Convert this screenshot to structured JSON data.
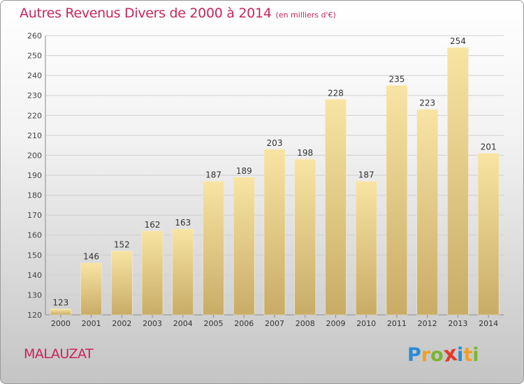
{
  "header": {
    "title": "Autres Revenus Divers de 2000 à 2014",
    "subtitle": "(en milliers d'€)"
  },
  "footer": {
    "commune": "MALAUZAT",
    "logo_letters": [
      "P",
      "r",
      "o",
      "x",
      "i",
      "t",
      "i"
    ],
    "logo_colors": [
      "#2c8bd4",
      "#f0a020",
      "#7ab630",
      "#e03c2a",
      "#2c8bd4",
      "#f0a020",
      "#7ab630"
    ]
  },
  "colors": {
    "title": "#c8255a",
    "bar_light": "#f7e2a0",
    "bar_dark": "#c9ae68",
    "grid": "#cfcfcf"
  },
  "chart_data": {
    "type": "bar",
    "title": "Autres Revenus Divers de 2000 à 2014",
    "subtitle": "(en milliers d'€)",
    "categories": [
      "2000",
      "2001",
      "2002",
      "2003",
      "2004",
      "2005",
      "2006",
      "2007",
      "2008",
      "2009",
      "2010",
      "2011",
      "2012",
      "2013",
      "2014"
    ],
    "values": [
      123,
      146,
      152,
      162,
      163,
      187,
      189,
      203,
      198,
      228,
      187,
      235,
      223,
      254,
      201
    ],
    "ylim": [
      120,
      260
    ],
    "yticks": [
      120,
      130,
      140,
      150,
      160,
      170,
      180,
      190,
      200,
      210,
      220,
      230,
      240,
      250,
      260
    ],
    "grid": true,
    "data_labels": true
  }
}
